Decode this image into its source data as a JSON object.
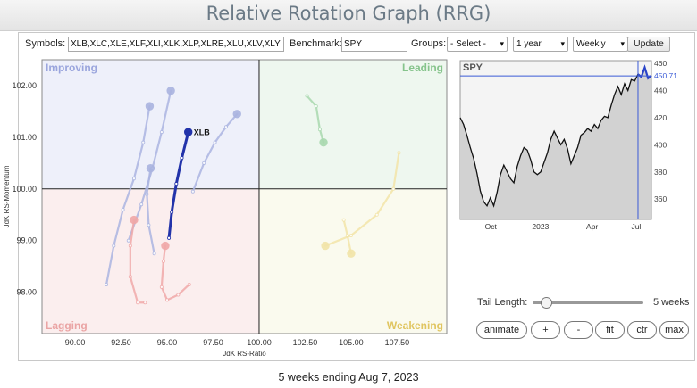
{
  "header": {
    "title": "Relative Rotation Graph (RRG)"
  },
  "toolbar": {
    "symbols_label": "Symbols:",
    "symbols_value": "XLB,XLC,XLE,XLF,XLI,XLK,XLP,XLRE,XLU,XLV,XLY",
    "benchmark_label": "Benchmark:",
    "benchmark_value": "SPY",
    "groups_label": "Groups:",
    "groups_value": "- Select -",
    "period_value": "1 year",
    "frequency_value": "Weekly",
    "update_label": "Update"
  },
  "controls": {
    "tail_length_label": "Tail Length:",
    "tail_length_value": "5 weeks",
    "tail_length_fraction": 0.12,
    "buttons": [
      "animate",
      "+",
      "-",
      "fit",
      "ctr",
      "max"
    ]
  },
  "footer": {
    "caption": "5 weeks ending Aug 7, 2023"
  },
  "chart_data": [
    {
      "type": "scatter",
      "title": "",
      "xlabel": "JdK RS-Ratio",
      "ylabel": "JdK RS-Momentum",
      "xlim": [
        88.2,
        110.2
      ],
      "ylim": [
        97.2,
        102.5
      ],
      "xticks": [
        90.0,
        92.5,
        95.0,
        97.5,
        100.0,
        102.5,
        105.0,
        107.5
      ],
      "yticks": [
        98.0,
        99.0,
        100.0,
        101.0,
        102.0
      ],
      "center": [
        100,
        100
      ],
      "quadrants": [
        {
          "name": "Improving",
          "position": "top-left",
          "color": "#eef0fa",
          "label_color": "#9aa5dd"
        },
        {
          "name": "Leading",
          "position": "top-right",
          "color": "#eef7ef",
          "label_color": "#86c48c"
        },
        {
          "name": "Lagging",
          "position": "bottom-left",
          "color": "#fbeeee",
          "label_color": "#eaa4a4"
        },
        {
          "name": "Weakening",
          "position": "bottom-right",
          "color": "#fafaee",
          "label_color": "#e0c560"
        }
      ],
      "grid": false,
      "series": [
        {
          "name": "XLB",
          "color": "#2233aa",
          "highlight": true,
          "points": [
            [
              95.1,
              99.05
            ],
            [
              95.25,
              99.55
            ],
            [
              95.5,
              100.1
            ],
            [
              95.8,
              100.6
            ],
            [
              96.15,
              101.1
            ]
          ]
        },
        {
          "name": "",
          "color": "#aab4e0",
          "highlight": false,
          "points": [
            [
              91.7,
              98.15
            ],
            [
              92.1,
              98.9
            ],
            [
              92.6,
              99.6
            ],
            [
              93.2,
              100.2
            ],
            [
              93.7,
              100.9
            ],
            [
              94.05,
              101.6
            ]
          ]
        },
        {
          "name": "",
          "color": "#aab4e0",
          "highlight": false,
          "points": [
            [
              92.9,
              99.0
            ],
            [
              93.6,
              99.7
            ],
            [
              94.2,
              100.4
            ],
            [
              94.7,
              101.1
            ],
            [
              95.2,
              101.9
            ]
          ]
        },
        {
          "name": "",
          "color": "#aab4e0",
          "highlight": false,
          "points": [
            [
              96.4,
              99.95
            ],
            [
              97.0,
              100.5
            ],
            [
              97.6,
              100.9
            ],
            [
              98.2,
              101.2
            ],
            [
              98.8,
              101.45
            ]
          ]
        },
        {
          "name": "",
          "color": "#aab4e0",
          "highlight": false,
          "points": [
            [
              94.3,
              98.75
            ],
            [
              94.0,
              99.3
            ],
            [
              93.9,
              99.9
            ],
            [
              94.1,
              100.4
            ]
          ]
        },
        {
          "name": "",
          "color": "#f0a8a8",
          "highlight": false,
          "points": [
            [
              93.8,
              97.8
            ],
            [
              93.4,
              97.8
            ],
            [
              93.0,
              98.3
            ],
            [
              93.0,
              98.9
            ],
            [
              93.2,
              99.4
            ]
          ]
        },
        {
          "name": "",
          "color": "#f0a8a8",
          "highlight": false,
          "points": [
            [
              96.2,
              98.15
            ],
            [
              95.6,
              97.95
            ],
            [
              95.0,
              97.85
            ],
            [
              94.7,
              98.1
            ],
            [
              94.8,
              98.6
            ],
            [
              94.9,
              98.9
            ]
          ]
        },
        {
          "name": "",
          "color": "#a8d8ae",
          "highlight": false,
          "points": [
            [
              102.6,
              101.8
            ],
            [
              103.1,
              101.6
            ],
            [
              103.3,
              101.15
            ],
            [
              103.5,
              100.9
            ]
          ]
        },
        {
          "name": "",
          "color": "#f2e4a8",
          "highlight": false,
          "points": [
            [
              107.6,
              100.7
            ],
            [
              107.3,
              100.0
            ],
            [
              106.4,
              99.5
            ],
            [
              105.0,
              99.1
            ],
            [
              103.6,
              98.9
            ]
          ]
        },
        {
          "name": "",
          "color": "#f2e4a8",
          "highlight": false,
          "points": [
            [
              104.6,
              99.4
            ],
            [
              104.8,
              99.1
            ],
            [
              105.0,
              98.75
            ]
          ]
        }
      ]
    },
    {
      "type": "area",
      "title": "SPY",
      "x_axis_labels": [
        "Oct",
        "2023",
        "Apr",
        "Jul"
      ],
      "ylim": [
        345,
        462
      ],
      "yticks": [
        360,
        380,
        400,
        420,
        440,
        460
      ],
      "last_value": 450.71,
      "values": [
        420,
        415,
        407,
        398,
        390,
        379,
        366,
        358,
        355,
        361,
        355,
        365,
        378,
        385,
        380,
        375,
        372,
        384,
        392,
        398,
        396,
        389,
        380,
        378,
        380,
        387,
        394,
        404,
        410,
        405,
        400,
        404,
        397,
        386,
        392,
        398,
        407,
        409,
        412,
        410,
        415,
        412,
        418,
        421,
        420,
        429,
        437,
        443,
        437,
        445,
        440,
        448,
        447,
        452,
        450,
        457,
        449,
        451
      ]
    }
  ]
}
